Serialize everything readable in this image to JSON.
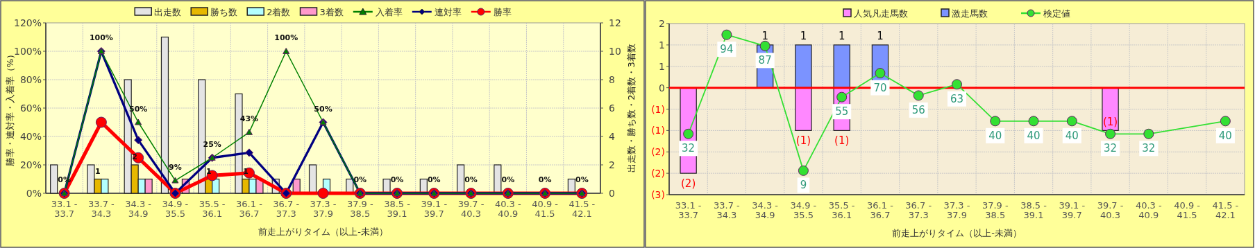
{
  "chart_data": [
    {
      "type": "bar",
      "categories": [
        "33.1 - 33.7",
        "33.7 - 34.3",
        "34.3 - 34.9",
        "34.9 - 35.5",
        "35.5 - 36.1",
        "36.1 - 36.7",
        "36.7 - 37.3",
        "37.3 - 37.9",
        "37.9 - 38.5",
        "38.5 - 39.1",
        "39.1 - 39.7",
        "39.7 - 40.3",
        "40.3 - 40.9",
        "40.9 - 41.5",
        "41.5 - 42.1"
      ],
      "xlabel": "前走上がりタイム（以上-未満）",
      "ylabel": "勝率・連対率・入着率（%）",
      "y2label": "出走数・勝ち数・2着数・3着数",
      "ylim": [
        0,
        120
      ],
      "yticks": [
        {
          "value": 0,
          "label": "0%"
        },
        {
          "value": 20,
          "label": "20%"
        },
        {
          "value": 40,
          "label": "40%"
        },
        {
          "value": 60,
          "label": "60%"
        },
        {
          "value": 80,
          "label": "80%"
        },
        {
          "value": 100,
          "label": "100%"
        },
        {
          "value": 120,
          "label": "120%"
        }
      ],
      "y2lim": [
        0,
        12
      ],
      "y2ticks": [
        0,
        2,
        4,
        6,
        8,
        10,
        12
      ],
      "grid": true,
      "legend": "top",
      "series": [
        {
          "name": "出走数",
          "axis": "y2",
          "color": "#e4e4e4",
          "values": [
            2,
            2,
            8,
            11,
            8,
            7,
            1,
            2,
            1,
            1,
            1,
            2,
            2,
            0,
            1
          ]
        },
        {
          "name": "勝ち数",
          "axis": "y2",
          "color": "#e6b800",
          "values": [
            0,
            1,
            2,
            0,
            1,
            1,
            0,
            0,
            0,
            0,
            0,
            0,
            0,
            0,
            0
          ],
          "value_labels": [
            null,
            "1",
            "2",
            null,
            "1",
            "1",
            null,
            null,
            null,
            null,
            null,
            null,
            null,
            null,
            null
          ]
        },
        {
          "name": "2着数",
          "axis": "y2",
          "color": "#b3ffff",
          "values": [
            0,
            1,
            1,
            0,
            1,
            1,
            0,
            1,
            0,
            0,
            0,
            0,
            0,
            0,
            0
          ]
        },
        {
          "name": "3着数",
          "axis": "y2",
          "color": "#ff99cc",
          "values": [
            0,
            0,
            1,
            1,
            0,
            1,
            1,
            0,
            0,
            0,
            0,
            0,
            0,
            0,
            0
          ]
        },
        {
          "name": "入着率",
          "type": "line",
          "marker": "triangle",
          "color": "#008000",
          "values": [
            0,
            100,
            50,
            9,
            25,
            43,
            100,
            50,
            0,
            0,
            0,
            0,
            0,
            0,
            0
          ],
          "value_labels": [
            "0%",
            "100%",
            "50%",
            "9%",
            "25%",
            "43%",
            "100%",
            "50%",
            "0%",
            "0%",
            "0%",
            "0%",
            "0%",
            "0%",
            "0%"
          ]
        },
        {
          "name": "連対率",
          "type": "line",
          "marker": "diamond",
          "color": "#000080",
          "values": [
            0,
            100,
            37.5,
            0,
            25,
            28.6,
            0,
            50,
            0,
            0,
            0,
            0,
            0,
            0,
            0
          ]
        },
        {
          "name": "勝率",
          "type": "line",
          "marker": "circle",
          "color": "#ff0000",
          "values": [
            0,
            50,
            25,
            0,
            12.5,
            14.3,
            0,
            0,
            0,
            0,
            0,
            0,
            0,
            0,
            0
          ]
        }
      ]
    },
    {
      "type": "bar",
      "stacked": true,
      "categories": [
        "33.1 - 33.7",
        "33.7 - 34.3",
        "34.3 - 34.9",
        "34.9 - 35.5",
        "35.5 - 36.1",
        "36.1 - 36.7",
        "36.7 - 37.3",
        "37.3 - 37.9",
        "37.9 - 38.5",
        "38.5 - 39.1",
        "39.1 - 39.7",
        "39.7 - 40.3",
        "40.3 - 40.9",
        "40.9 - 41.5",
        "41.5 - 42.1"
      ],
      "xlabel": "前走上がりタイム（以上-未満）",
      "ylim": [
        -2.5,
        1.5
      ],
      "yticks": [
        {
          "value": 1.5,
          "label": "2"
        },
        {
          "value": 1,
          "label": "1"
        },
        {
          "value": 0.5,
          "label": "1"
        },
        {
          "value": 0,
          "label": "0"
        },
        {
          "value": -0.5,
          "label": "(1)"
        },
        {
          "value": -1,
          "label": "(1)"
        },
        {
          "value": -1.5,
          "label": "(2)"
        },
        {
          "value": -2,
          "label": "(2)"
        },
        {
          "value": -2.5,
          "label": "(3)"
        }
      ],
      "y2lim": [
        -6,
        101
      ],
      "grid": true,
      "legend": "top",
      "ref_lines": [
        {
          "axis": "y",
          "value": 0,
          "color": "#ff0000"
        }
      ],
      "series": [
        {
          "name": "人気凡走馬数",
          "color": "#ff88ff",
          "values": [
            -2,
            null,
            null,
            -1,
            -1,
            null,
            null,
            null,
            null,
            null,
            null,
            -1,
            null,
            null,
            null
          ],
          "value_labels": [
            "(2)",
            null,
            null,
            "(1)",
            "(1)",
            null,
            null,
            null,
            null,
            null,
            null,
            "(1)",
            null,
            null,
            null
          ]
        },
        {
          "name": "激走馬数",
          "color": "#7b93ff",
          "values": [
            null,
            null,
            1,
            1,
            1,
            1,
            null,
            null,
            null,
            null,
            null,
            null,
            null,
            null,
            null
          ],
          "value_labels": [
            null,
            null,
            "1",
            "1",
            "1",
            "1",
            null,
            null,
            null,
            null,
            null,
            null,
            null,
            null,
            null
          ]
        },
        {
          "name": "検定値",
          "type": "line",
          "axis": "y2",
          "marker": "circle",
          "color": "#33e033",
          "values": [
            32,
            94,
            87,
            9,
            55,
            70,
            56,
            63,
            40,
            40,
            40,
            32,
            32,
            null,
            40
          ],
          "value_labels": [
            "32",
            "94",
            "87",
            "9",
            "55",
            "70",
            "56",
            "63",
            "40",
            "40",
            "40",
            "32",
            "32",
            null,
            "40"
          ]
        }
      ]
    }
  ]
}
